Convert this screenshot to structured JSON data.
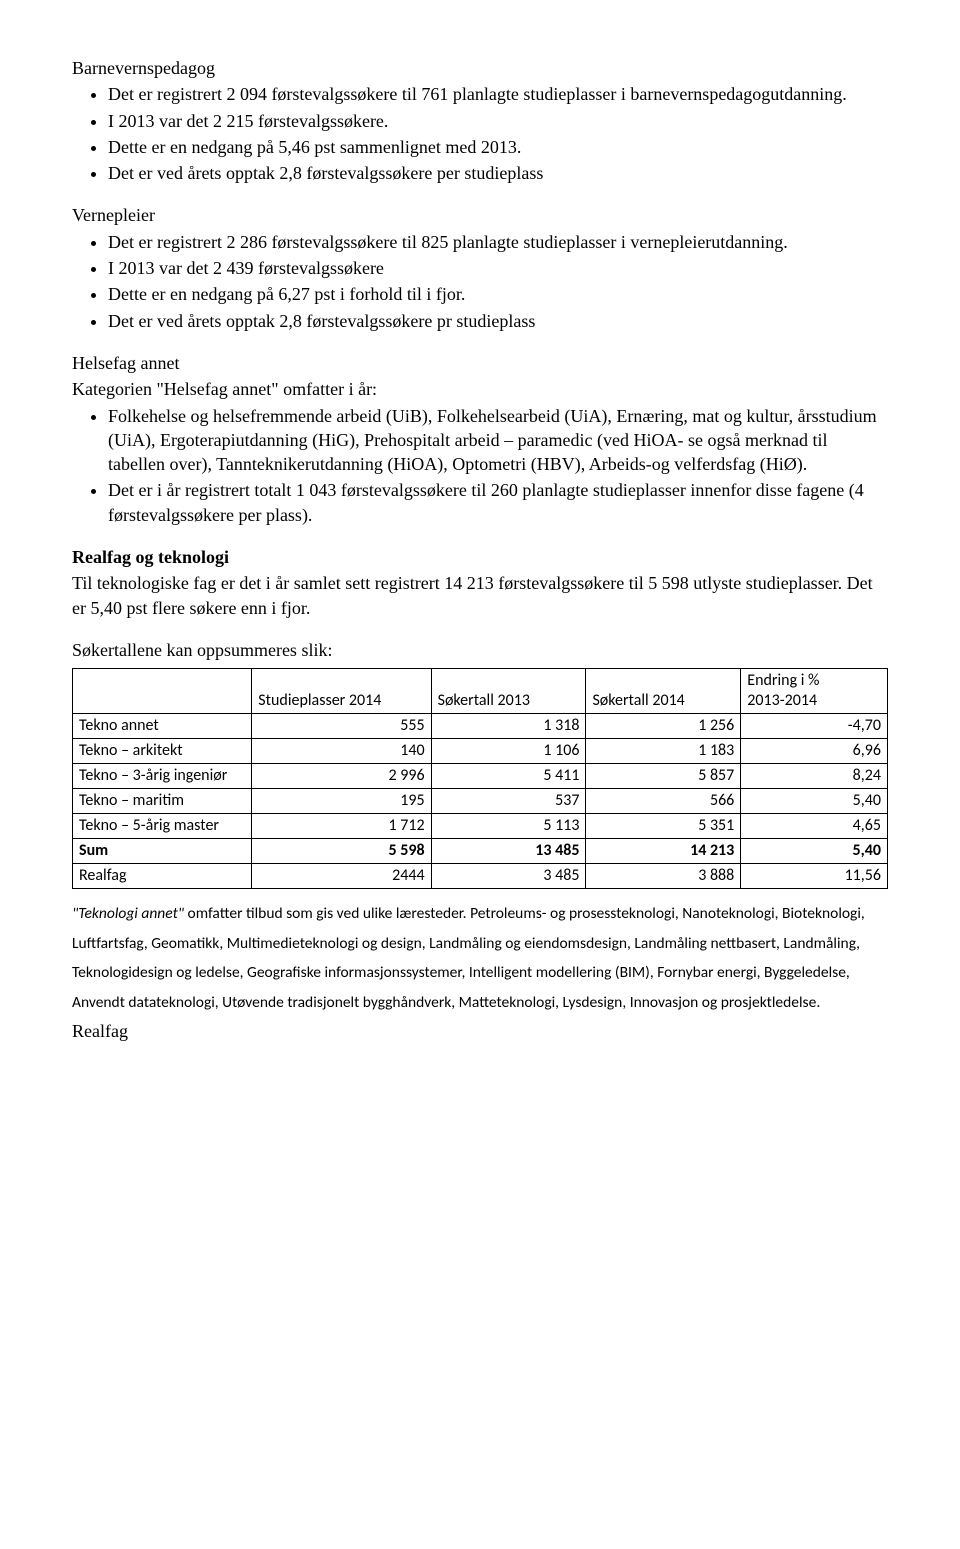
{
  "sections": {
    "barnevern": {
      "title": "Barnevernspedagog",
      "items": [
        "Det er registrert 2 094 førstevalgssøkere til 761 planlagte studieplasser i barnevernspedagogutdanning.",
        "I 2013 var det 2 215 førstevalgssøkere.",
        "Dette er en nedgang på 5,46 pst sammenlignet med 2013.",
        "Det er ved årets opptak 2,8 førstevalgssøkere per studieplass"
      ]
    },
    "vernepleier": {
      "title": "Vernepleier",
      "items": [
        "Det er registrert 2 286 førstevalgssøkere til 825 planlagte studieplasser i vernepleierutdanning.",
        "I 2013 var det 2 439 førstevalgssøkere",
        "Dette er en nedgang på 6,27 pst i forhold til i fjor.",
        "Det er ved årets opptak 2,8 førstevalgssøkere pr studieplass"
      ]
    },
    "helsefag": {
      "title": "Helsefag annet",
      "subtitle": "Kategorien \"Helsefag annet\" omfatter i år:",
      "items": [
        "Folkehelse og helsefremmende arbeid (UiB), Folkehelsearbeid (UiA), Ernæring, mat og kultur, årsstudium (UiA), Ergoterapiutdanning (HiG), Prehospitalt arbeid – paramedic (ved HiOA- se også merknad til tabellen over), Tannteknikerutdanning (HiOA), Optometri (HBV), Arbeids-og velferdsfag (HiØ).",
        "Det er i år registrert totalt 1 043 førstevalgssøkere til 260 planlagte studieplasser innenfor disse fagene (4 førstevalgssøkere per plass)."
      ]
    },
    "realfag": {
      "title": "Realfag og teknologi",
      "intro": "Til teknologiske fag er det i år samlet sett registrert 14 213 førstevalgssøkere til 5 598 utlyste studieplasser.   Det er 5,40 pst flere søkere enn i fjor.",
      "subhead": "Søkertallene kan oppsummeres slik:"
    }
  },
  "table": {
    "headers": [
      "",
      "Studieplasser 2014",
      "Søkertall 2013",
      "Søkertall 2014",
      "Endring i %"
    ],
    "subheader": "2013-2014",
    "rows": [
      {
        "label": "Tekno annet",
        "c1": "555",
        "c2": "1 318",
        "c3": "1 256",
        "c4": "-4,70",
        "bold": false
      },
      {
        "label": "Tekno – arkitekt",
        "c1": "140",
        "c2": "1 106",
        "c3": "1 183",
        "c4": "6,96",
        "bold": false
      },
      {
        "label": "Tekno – 3-årig ingeniør",
        "c1": "2 996",
        "c2": "5 411",
        "c3": "5 857",
        "c4": "8,24",
        "bold": false
      },
      {
        "label": "Tekno – maritim",
        "c1": "195",
        "c2": "537",
        "c3": "566",
        "c4": "5,40",
        "bold": false
      },
      {
        "label": "Tekno – 5-årig master",
        "c1": "1 712",
        "c2": "5 113",
        "c3": "5 351",
        "c4": "4,65",
        "bold": false
      },
      {
        "label": "Sum",
        "c1": "5 598",
        "c2": "13 485",
        "c3": "14 213",
        "c4": "5,40",
        "bold": true
      },
      {
        "label": "Realfag",
        "c1": "2444",
        "c2": "3 485",
        "c3": "3 888",
        "c4": "11,56",
        "bold": false
      }
    ],
    "col_widths": [
      "22%",
      "22%",
      "19%",
      "19%",
      "18%"
    ],
    "border_color": "#000000",
    "background_color": "#ffffff",
    "font_family": "Calibri",
    "font_size_pt": 11
  },
  "footnote": {
    "italic_lead": "\"Teknologi annet\"",
    "text": " omfatter tilbud som gis ved ulike læresteder. Petroleums- og prosessteknologi, Nanoteknologi, Bioteknologi, Luftfartsfag, Geomatikk, Multimedieteknologi og design, Landmåling og eiendomsdesign, Landmåling nettbasert, Landmåling, Teknologidesign og ledelse, Geografiske informasjonssystemer, Intelligent modellering (BIM), Fornybar energi, Byggeledelse, Anvendt datateknologi, Utøvende tradisjonelt bygghåndverk, Matteteknologi, Lysdesign, Innovasjon og prosjektledelse."
  },
  "last": "Realfag"
}
